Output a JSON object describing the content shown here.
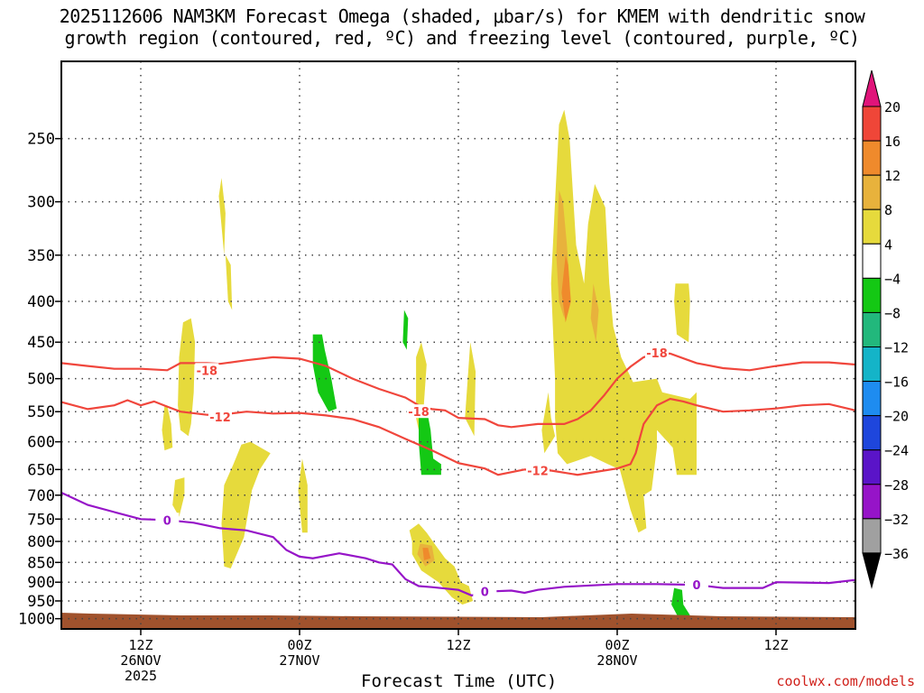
{
  "title_line1": "2025112606 NAM3KM Forecast Omega (shaded, μbar/s) for KMEM with dendritic snow",
  "title_line2": "growth region (contoured, red, ºC) and freezing level (contoured, purple, ºC)",
  "credit": "coolwx.com/models",
  "chart_data": {
    "type": "time-height cross section",
    "title": "2025112606 NAM3KM Forecast Omega (shaded, μbar/s) for KMEM with dendritic snow growth region (contoured, red, ºC) and freezing level (contoured, purple, ºC)",
    "xlabel": "Forecast Time (UTC)",
    "ylabel": "",
    "y_scale": "log pressure (hPa), inverted",
    "ylim": [
      1030,
      200
    ],
    "y_ticks": [
      250,
      300,
      350,
      400,
      450,
      500,
      550,
      600,
      650,
      700,
      750,
      800,
      850,
      900,
      950,
      1000
    ],
    "xlim_hours_from_init": [
      0,
      60
    ],
    "x_ticks": [
      {
        "hour": 6,
        "labels": [
          "12Z",
          "26NOV",
          "2025"
        ]
      },
      {
        "hour": 18,
        "labels": [
          "00Z",
          "27NOV"
        ]
      },
      {
        "hour": 30,
        "labels": [
          "12Z"
        ]
      },
      {
        "hour": 42,
        "labels": [
          "00Z",
          "28NOV"
        ]
      },
      {
        "hour": 54,
        "labels": [
          "12Z"
        ]
      }
    ],
    "grid": true,
    "colorbar": {
      "ticks": [
        "20",
        "16",
        "12",
        "8",
        "4",
        "−4",
        "−8",
        "−12",
        "−16",
        "−20",
        "−24",
        "−28",
        "−32",
        "−36"
      ],
      "colors": [
        "#e0147a",
        "#ef4638",
        "#ef8a2c",
        "#e8b23c",
        "#e6da3c",
        "#ffffff",
        "#14c814",
        "#22b87c",
        "#14b4c8",
        "#1e8cf0",
        "#1e46dc",
        "#5a14c8",
        "#9614c8",
        "#a0a0a0"
      ]
    },
    "contours": [
      {
        "name": "-18",
        "color": "#f0463c",
        "label_positions": [
          [
            11,
            488
          ],
          [
            27,
            550
          ],
          [
            45,
            464
          ]
        ],
        "points": [
          [
            0,
            478
          ],
          [
            2,
            482
          ],
          [
            4,
            486
          ],
          [
            6,
            486
          ],
          [
            8,
            488
          ],
          [
            9,
            478
          ],
          [
            11,
            478
          ],
          [
            12,
            479
          ],
          [
            14,
            474
          ],
          [
            16,
            470
          ],
          [
            18,
            472
          ],
          [
            20,
            482
          ],
          [
            22,
            500
          ],
          [
            24,
            515
          ],
          [
            26,
            528
          ],
          [
            27,
            540
          ],
          [
            28,
            546
          ],
          [
            29,
            548
          ],
          [
            30,
            560
          ],
          [
            32,
            562
          ],
          [
            33,
            572
          ],
          [
            34,
            575
          ],
          [
            36,
            570
          ],
          [
            38,
            570
          ],
          [
            39,
            562
          ],
          [
            40,
            548
          ],
          [
            41,
            525
          ],
          [
            42,
            500
          ],
          [
            43,
            483
          ],
          [
            44,
            470
          ],
          [
            45,
            465
          ],
          [
            46,
            465
          ],
          [
            48,
            478
          ],
          [
            50,
            485
          ],
          [
            52,
            488
          ],
          [
            54,
            482
          ],
          [
            56,
            477
          ],
          [
            58,
            477
          ],
          [
            60,
            480
          ]
        ]
      },
      {
        "name": "-12",
        "color": "#f0463c",
        "label_positions": [
          [
            12,
            558
          ],
          [
            36,
            652
          ]
        ],
        "points": [
          [
            0,
            535
          ],
          [
            2,
            546
          ],
          [
            4,
            540
          ],
          [
            5,
            532
          ],
          [
            6,
            540
          ],
          [
            7,
            534
          ],
          [
            8,
            542
          ],
          [
            9,
            550
          ],
          [
            11,
            555
          ],
          [
            12,
            555
          ],
          [
            14,
            550
          ],
          [
            16,
            553
          ],
          [
            18,
            552
          ],
          [
            20,
            556
          ],
          [
            22,
            562
          ],
          [
            24,
            575
          ],
          [
            26,
            595
          ],
          [
            28,
            615
          ],
          [
            30,
            638
          ],
          [
            32,
            648
          ],
          [
            33,
            660
          ],
          [
            35,
            650
          ],
          [
            37,
            652
          ],
          [
            39,
            660
          ],
          [
            41,
            652
          ],
          [
            42,
            648
          ],
          [
            43,
            640
          ],
          [
            43.4,
            620
          ],
          [
            44,
            570
          ],
          [
            45,
            540
          ],
          [
            46,
            530
          ],
          [
            47,
            534
          ],
          [
            48,
            540
          ],
          [
            50,
            550
          ],
          [
            52,
            548
          ],
          [
            54,
            545
          ],
          [
            56,
            540
          ],
          [
            58,
            538
          ],
          [
            60,
            548
          ]
        ]
      },
      {
        "name": "0",
        "color": "#9614c8",
        "label_positions": [
          [
            8,
            752
          ],
          [
            32,
            925
          ],
          [
            48,
            907
          ]
        ],
        "points": [
          [
            0,
            695
          ],
          [
            2,
            720
          ],
          [
            4,
            735
          ],
          [
            6,
            750
          ],
          [
            8,
            752
          ],
          [
            10,
            758
          ],
          [
            12,
            770
          ],
          [
            14,
            775
          ],
          [
            16,
            790
          ],
          [
            17,
            820
          ],
          [
            18,
            836
          ],
          [
            19,
            840
          ],
          [
            21,
            828
          ],
          [
            23,
            840
          ],
          [
            24,
            850
          ],
          [
            25,
            855
          ],
          [
            26,
            892
          ],
          [
            27,
            910
          ],
          [
            28,
            913
          ],
          [
            30,
            920
          ],
          [
            31,
            935
          ],
          [
            32,
            925
          ],
          [
            34,
            922
          ],
          [
            35,
            928
          ],
          [
            36,
            920
          ],
          [
            38,
            912
          ],
          [
            42,
            905
          ],
          [
            45,
            905
          ],
          [
            48,
            907
          ],
          [
            50,
            915
          ],
          [
            53,
            915
          ],
          [
            54,
            900
          ],
          [
            58,
            902
          ],
          [
            60,
            894
          ]
        ]
      }
    ],
    "omega_regions": [
      {
        "value_range": "4 to 8",
        "color": "#e6da3c",
        "approx_hours": [
          9,
          10
        ],
        "approx_hPa": [
          420,
          580
        ]
      },
      {
        "value_range": "4 to 8",
        "color": "#e6da3c",
        "approx_hours": [
          12,
          13
        ],
        "approx_hPa": [
          300,
          420
        ]
      },
      {
        "value_range": "4 to 8",
        "color": "#e6da3c",
        "approx_hours": [
          12,
          16
        ],
        "approx_hPa": [
          600,
          870
        ]
      },
      {
        "value_range": "4 to 8",
        "color": "#e6da3c",
        "approx_hours": [
          26,
          30
        ],
        "approx_hPa": [
          780,
          950
        ]
      },
      {
        "value_range": "4 to 8",
        "color": "#e6da3c",
        "approx_hours": [
          37,
          48
        ],
        "approx_hPa": [
          230,
          780
        ]
      },
      {
        "value_range": "12 to 16",
        "color": "#ef8a2c",
        "approx_hours": [
          27.3,
          28.3
        ],
        "approx_hPa": [
          800,
          850
        ]
      },
      {
        "value_range": "-4 to -8",
        "color": "#14c814",
        "approx_hours": [
          19,
          20
        ],
        "approx_hPa": [
          450,
          550
        ]
      },
      {
        "value_range": "-4 to -8",
        "color": "#14c814",
        "approx_hours": [
          27,
          28
        ],
        "approx_hPa": [
          560,
          660
        ]
      },
      {
        "value_range": "-4 to -8",
        "color": "#14c814",
        "approx_hours": [
          46,
          47
        ],
        "approx_hPa": [
          920,
          990
        ]
      }
    ]
  }
}
